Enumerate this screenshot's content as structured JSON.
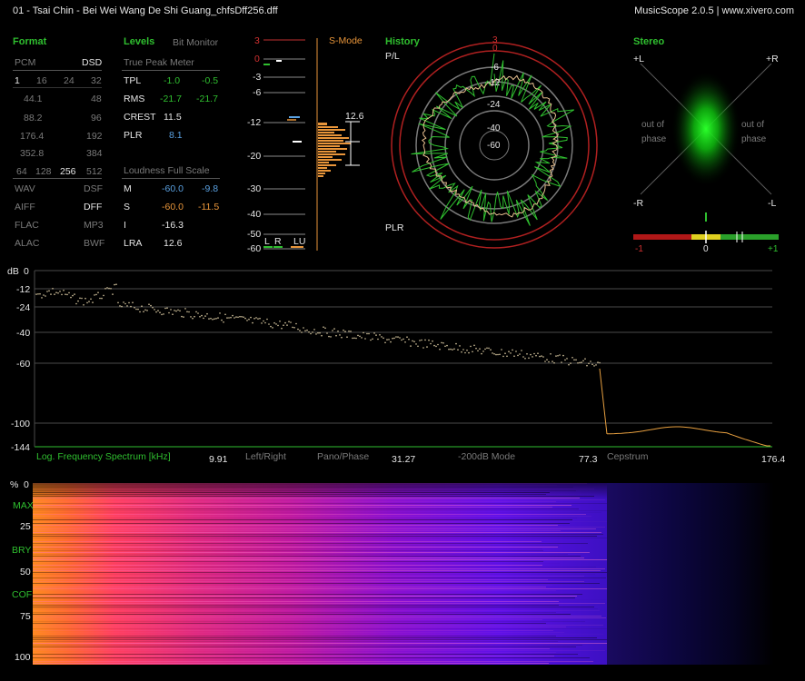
{
  "title_bar": {
    "file": "01 - Tsai Chin - Bei Wei Wang De Shi Guang_chfsDff256.dff",
    "app": "MusicScope 2.0.5 | www.xivero.com"
  },
  "format": {
    "heading": "Format",
    "pcm": "PCM",
    "dsd": "DSD",
    "bits": [
      "1",
      "16",
      "24",
      "32"
    ],
    "rates_pcm": [
      "44.1",
      "88.2",
      "176.4",
      "352.8"
    ],
    "rates_dsd": [
      "48",
      "96",
      "192",
      "384"
    ],
    "dsd_rates": [
      "64",
      "128",
      "256",
      "512"
    ],
    "containers_left": [
      "WAV",
      "AIFF",
      "FLAC",
      "ALAC"
    ],
    "containers_right": [
      "DSF",
      "DFF",
      "MP3",
      "BWF"
    ]
  },
  "levels": {
    "heading": "Levels",
    "bit_monitor": "Bit Monitor",
    "true_peak_meter": "True Peak Meter",
    "rows": [
      {
        "label": "TPL",
        "left": "-1.0",
        "right": "-0.5"
      },
      {
        "label": "RMS",
        "left": "-21.7",
        "right": "-21.7"
      },
      {
        "label": "CREST",
        "left": "11.5",
        "right": ""
      },
      {
        "label": "PLR",
        "left": "8.1",
        "right": ""
      }
    ],
    "loudness_heading": "Loudness Full Scale",
    "loudness_rows": [
      {
        "label": "M",
        "left": "-60.0",
        "right": "-9.8"
      },
      {
        "label": "S",
        "left": "-60.0",
        "right": "-11.5"
      },
      {
        "label": "I",
        "left": "-16.3",
        "right": ""
      },
      {
        "label": "LRA",
        "left": "12.6",
        "right": ""
      }
    ]
  },
  "meter": {
    "smode": "S-Mode",
    "scale": [
      "3",
      "0",
      "-3",
      "-6",
      "-12",
      "-20",
      "-30",
      "-40",
      "-50",
      "-60"
    ],
    "value": "12.6",
    "channel_labels": [
      "L",
      "R",
      "LU"
    ]
  },
  "history": {
    "heading": "History",
    "pl": "P/L",
    "plr": "PLR",
    "rings": [
      "3",
      "0",
      "-6",
      "-12",
      "-24",
      "-40",
      "-60"
    ]
  },
  "stereo": {
    "heading": "Stereo",
    "corners": [
      "+L",
      "+R",
      "-R",
      "-L"
    ],
    "out_of_phase": "out of\nphase",
    "balance_labels": [
      "-1",
      "0",
      "+1"
    ]
  },
  "spectrum": {
    "db_label": "dB",
    "y_ticks": [
      "0",
      "-12",
      "-24",
      "-40",
      "-60",
      "-100",
      "-144"
    ],
    "title": "Log. Frequency Spectrum [kHz]",
    "x_ticks": [
      "9.91",
      "31.27",
      "77.3",
      "176.4"
    ],
    "buttons": [
      "Left/Right",
      "Pano/Phase",
      "-200dB Mode",
      "Cepstrum"
    ]
  },
  "spectrogram": {
    "labels": [
      "%",
      "0",
      "MAX",
      "25",
      "BRY",
      "50",
      "COF",
      "75",
      "100"
    ]
  },
  "colors": {
    "green": "#2fbf2f",
    "orange": "#e8953a",
    "blue": "#5aa0e0",
    "red": "#cc2222"
  }
}
